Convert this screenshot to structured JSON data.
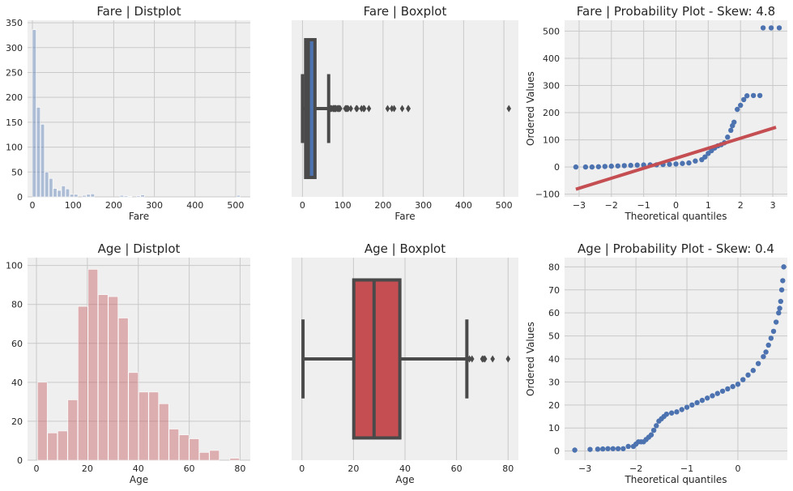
{
  "chart_data": [
    {
      "id": "fare_dist",
      "type": "bar",
      "title": "Fare | Distplot",
      "xlabel": "Fare",
      "ylabel": "",
      "xlim": [
        -12,
        536
      ],
      "ylim": [
        0,
        355
      ],
      "xticks": [
        0,
        100,
        200,
        300,
        400,
        500
      ],
      "yticks": [
        0,
        50,
        100,
        150,
        200,
        250,
        300,
        350
      ],
      "grid": true,
      "color": "#4c72b0",
      "bin_edges": [
        0,
        10.25,
        20.5,
        30.75,
        41,
        51.25,
        61.5,
        71.75,
        82,
        92.25,
        102.5,
        112.75,
        123,
        133.25,
        143.5,
        153.75,
        164,
        174.25,
        184.5,
        194.75,
        205,
        215.25,
        225.5,
        235.75,
        246,
        256.25,
        266.5,
        276.75,
        287,
        297.25,
        307.5,
        317.75,
        328,
        338.25,
        348.5,
        358.75,
        369,
        379.25,
        389.5,
        399.75,
        410,
        420.25,
        430.5,
        440.75,
        451,
        461.25,
        471.5,
        481.75,
        492,
        502.25,
        512.5
      ],
      "values": [
        336,
        180,
        146,
        50,
        37,
        17,
        13,
        22,
        16,
        5,
        5,
        0,
        3,
        5,
        6,
        0,
        0,
        0,
        0,
        0,
        0,
        3,
        2,
        1,
        0,
        2,
        4,
        0,
        0,
        0,
        0,
        0,
        0,
        0,
        0,
        0,
        0,
        0,
        0,
        0,
        0,
        0,
        0,
        0,
        0,
        0,
        0,
        0,
        0,
        3
      ]
    },
    {
      "id": "fare_box",
      "type": "box",
      "title": "Fare | Boxplot",
      "xlabel": "Fare",
      "xlim": [
        -27,
        536
      ],
      "xticks": [
        0,
        100,
        200,
        300,
        400,
        500
      ],
      "grid": true,
      "color": "#4c72b0",
      "min": 0,
      "q1": 7.9,
      "median": 14.45,
      "q3": 31,
      "whisker_high": 65,
      "outliers": [
        69.55,
        71,
        73.5,
        76.7,
        77.3,
        78.3,
        79.2,
        80,
        81.9,
        82.2,
        83.2,
        86.5,
        89.1,
        90,
        91.1,
        93.5,
        106.4,
        108.9,
        110.9,
        113.3,
        120,
        133.7,
        135.6,
        146.5,
        151.6,
        153.5,
        164.9,
        211.3,
        221.8,
        227.5,
        247.5,
        262.4,
        263,
        512.3
      ]
    },
    {
      "id": "fare_prob",
      "type": "scatter",
      "title": "Fare | Probability Plot - Skew: 4.8",
      "xlabel": "Theoretical quantiles",
      "ylabel": "Ordered Values",
      "xlim": [
        -3.45,
        3.45
      ],
      "ylim": [
        -110,
        540
      ],
      "xticks": [
        -3,
        -2,
        -1,
        0,
        1,
        2,
        3
      ],
      "yticks": [
        -100,
        0,
        100,
        200,
        300,
        400,
        500
      ],
      "grid": true,
      "point_color": "#4c72b0",
      "line_color": "#c44e52",
      "fit_line": {
        "slope": 36.8,
        "intercept": 32.2,
        "x_range": [
          -3.1,
          3.1
        ]
      },
      "points": [
        [
          -3.1,
          0
        ],
        [
          -2.8,
          0
        ],
        [
          -2.6,
          0
        ],
        [
          -2.4,
          1
        ],
        [
          -2.2,
          2
        ],
        [
          -2.0,
          3
        ],
        [
          -1.8,
          4
        ],
        [
          -1.6,
          5
        ],
        [
          -1.4,
          6
        ],
        [
          -1.2,
          7
        ],
        [
          -1.0,
          7.5
        ],
        [
          -0.8,
          7.8
        ],
        [
          -0.6,
          8
        ],
        [
          -0.4,
          9
        ],
        [
          -0.2,
          10
        ],
        [
          0,
          11
        ],
        [
          0.2,
          13
        ],
        [
          0.4,
          15
        ],
        [
          0.6,
          22
        ],
        [
          0.8,
          27
        ],
        [
          0.9,
          37
        ],
        [
          1.0,
          50
        ],
        [
          1.1,
          60
        ],
        [
          1.2,
          70
        ],
        [
          1.3,
          78
        ],
        [
          1.4,
          82
        ],
        [
          1.5,
          89
        ],
        [
          1.6,
          110
        ],
        [
          1.7,
          135
        ],
        [
          1.75,
          152
        ],
        [
          1.8,
          165
        ],
        [
          1.9,
          212
        ],
        [
          2.0,
          227
        ],
        [
          2.1,
          248
        ],
        [
          2.2,
          262
        ],
        [
          2.4,
          263
        ],
        [
          2.6,
          263
        ],
        [
          2.7,
          512
        ],
        [
          2.95,
          512
        ],
        [
          3.2,
          512
        ]
      ]
    },
    {
      "id": "age_dist",
      "type": "bar",
      "title": "Age | Distplot",
      "xlabel": "Age",
      "ylabel": "",
      "xlim": [
        -3.5,
        84
      ],
      "ylim": [
        0,
        104
      ],
      "xticks": [
        0,
        20,
        40,
        60,
        80
      ],
      "yticks": [
        0,
        20,
        40,
        60,
        80,
        100
      ],
      "grid": true,
      "color": "#c44e52",
      "bin_edges": [
        0.42,
        4.4,
        8.37,
        12.35,
        16.33,
        20.3,
        24.28,
        28.26,
        32.23,
        36.21,
        40.19,
        44.16,
        48.14,
        52.12,
        56.09,
        60.07,
        64.05,
        68.02,
        72,
        75.98,
        79.95
      ],
      "values": [
        40,
        14,
        15,
        31,
        79,
        98,
        85,
        84,
        73,
        45,
        35,
        35,
        29,
        16,
        13,
        11,
        4,
        5,
        0,
        1
      ]
    },
    {
      "id": "age_box",
      "type": "box",
      "title": "Age | Boxplot",
      "xlabel": "Age",
      "xlim": [
        -4,
        84
      ],
      "xticks": [
        0,
        20,
        40,
        60,
        80
      ],
      "grid": true,
      "color": "#c44e52",
      "min": 0.42,
      "q1": 20.12,
      "median": 28,
      "q3": 38,
      "whisker_high": 64,
      "outliers": [
        65,
        66,
        70,
        70.5,
        71,
        74,
        80
      ]
    },
    {
      "id": "age_prob",
      "type": "scatter",
      "title": "Age | Probability Plot - Skew: 0.4",
      "xlabel": "Theoretical quantiles",
      "ylabel": "Ordered Values",
      "xlim": [
        -3.4,
        0.97
      ],
      "ylim": [
        -4,
        84
      ],
      "xticks": [
        -3,
        -2,
        -1,
        0
      ],
      "yticks": [
        0,
        10,
        20,
        30,
        40,
        50,
        60,
        70,
        80
      ],
      "grid": true,
      "point_color": "#4c72b0",
      "points": [
        [
          -3.2,
          0.4
        ],
        [
          -2.9,
          0.7
        ],
        [
          -2.75,
          0.8
        ],
        [
          -2.65,
          0.9
        ],
        [
          -2.55,
          1
        ],
        [
          -2.45,
          1
        ],
        [
          -2.35,
          1
        ],
        [
          -2.25,
          1
        ],
        [
          -2.15,
          2
        ],
        [
          -2.05,
          2
        ],
        [
          -2.0,
          3
        ],
        [
          -1.95,
          4
        ],
        [
          -1.9,
          4
        ],
        [
          -1.85,
          4
        ],
        [
          -1.8,
          5
        ],
        [
          -1.75,
          6
        ],
        [
          -1.7,
          7
        ],
        [
          -1.65,
          9
        ],
        [
          -1.6,
          11
        ],
        [
          -1.55,
          13
        ],
        [
          -1.5,
          14
        ],
        [
          -1.45,
          15
        ],
        [
          -1.4,
          16
        ],
        [
          -1.3,
          16.5
        ],
        [
          -1.2,
          17
        ],
        [
          -1.1,
          18
        ],
        [
          -1.0,
          19
        ],
        [
          -0.9,
          20
        ],
        [
          -0.8,
          21
        ],
        [
          -0.7,
          22
        ],
        [
          -0.6,
          23
        ],
        [
          -0.5,
          24
        ],
        [
          -0.4,
          25
        ],
        [
          -0.3,
          26
        ],
        [
          -0.2,
          27
        ],
        [
          -0.1,
          28
        ],
        [
          0,
          29
        ],
        [
          0.1,
          31
        ],
        [
          0.2,
          33
        ],
        [
          0.3,
          35
        ],
        [
          0.4,
          38
        ],
        [
          0.5,
          41
        ],
        [
          0.55,
          43
        ],
        [
          0.6,
          46
        ],
        [
          0.65,
          49
        ],
        [
          0.7,
          52
        ],
        [
          0.75,
          56
        ],
        [
          0.8,
          60
        ],
        [
          0.82,
          62
        ],
        [
          0.84,
          65
        ],
        [
          0.86,
          70
        ],
        [
          0.88,
          74
        ],
        [
          0.9,
          80
        ]
      ]
    }
  ]
}
